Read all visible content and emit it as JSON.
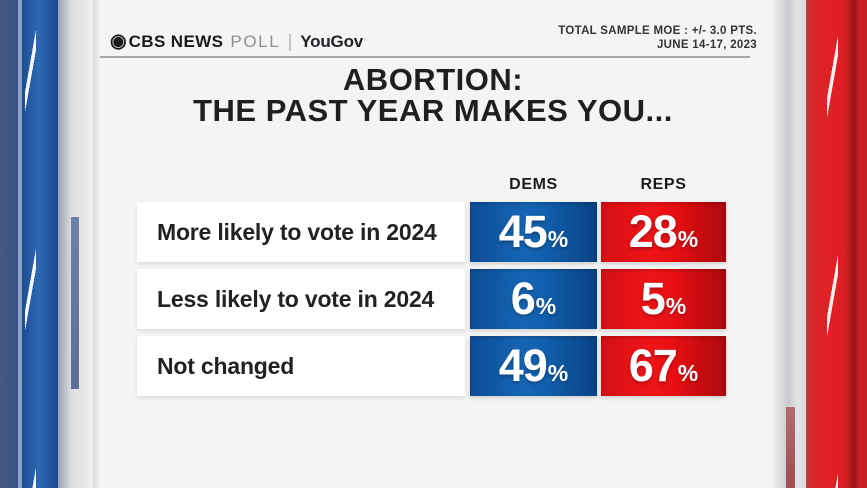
{
  "brand": {
    "eye_glyph": "◉",
    "cbs_news": "CBS NEWS",
    "poll": "POLL",
    "yougov": "YouGov",
    "yougov_mark": "’"
  },
  "header_note": {
    "line1": "TOTAL SAMPLE MOE : +/- 3.0 PTS.",
    "line2": "JUNE 14-17, 2023"
  },
  "title": {
    "line1": "ABORTION:",
    "line2": "THE PAST YEAR MAKES YOU..."
  },
  "table": {
    "columns": [
      {
        "label": "DEMS"
      },
      {
        "label": "REPS"
      }
    ],
    "percent_sign": "%",
    "rows": [
      {
        "label": "More likely to vote in 2024",
        "dems": "45",
        "reps": "28"
      },
      {
        "label": "Less likely to vote in 2024",
        "dems": "6",
        "reps": "5"
      },
      {
        "label": "Not changed",
        "dems": "49",
        "reps": "67"
      }
    ]
  },
  "chart_data": {
    "type": "table",
    "title": "ABORTION: THE PAST YEAR MAKES YOU...",
    "source": "CBS NEWS POLL | YouGov",
    "note": "TOTAL SAMPLE MOE : +/- 3.0 PTS.",
    "date": "JUNE 14-17, 2023",
    "categories": [
      "More likely to vote in 2024",
      "Less likely to vote in 2024",
      "Not changed"
    ],
    "series": [
      {
        "name": "DEMS",
        "values": [
          45,
          6,
          49
        ]
      },
      {
        "name": "REPS",
        "values": [
          28,
          5,
          67
        ]
      }
    ],
    "unit": "%"
  },
  "colors": {
    "dem_blue": "#1160ae",
    "rep_red": "#e30f13",
    "title_text": "#1f1f1f",
    "card_bg": "#f4f4f4",
    "left_panel_blue": "#2e68b3",
    "right_panel_red": "#e21f23"
  }
}
